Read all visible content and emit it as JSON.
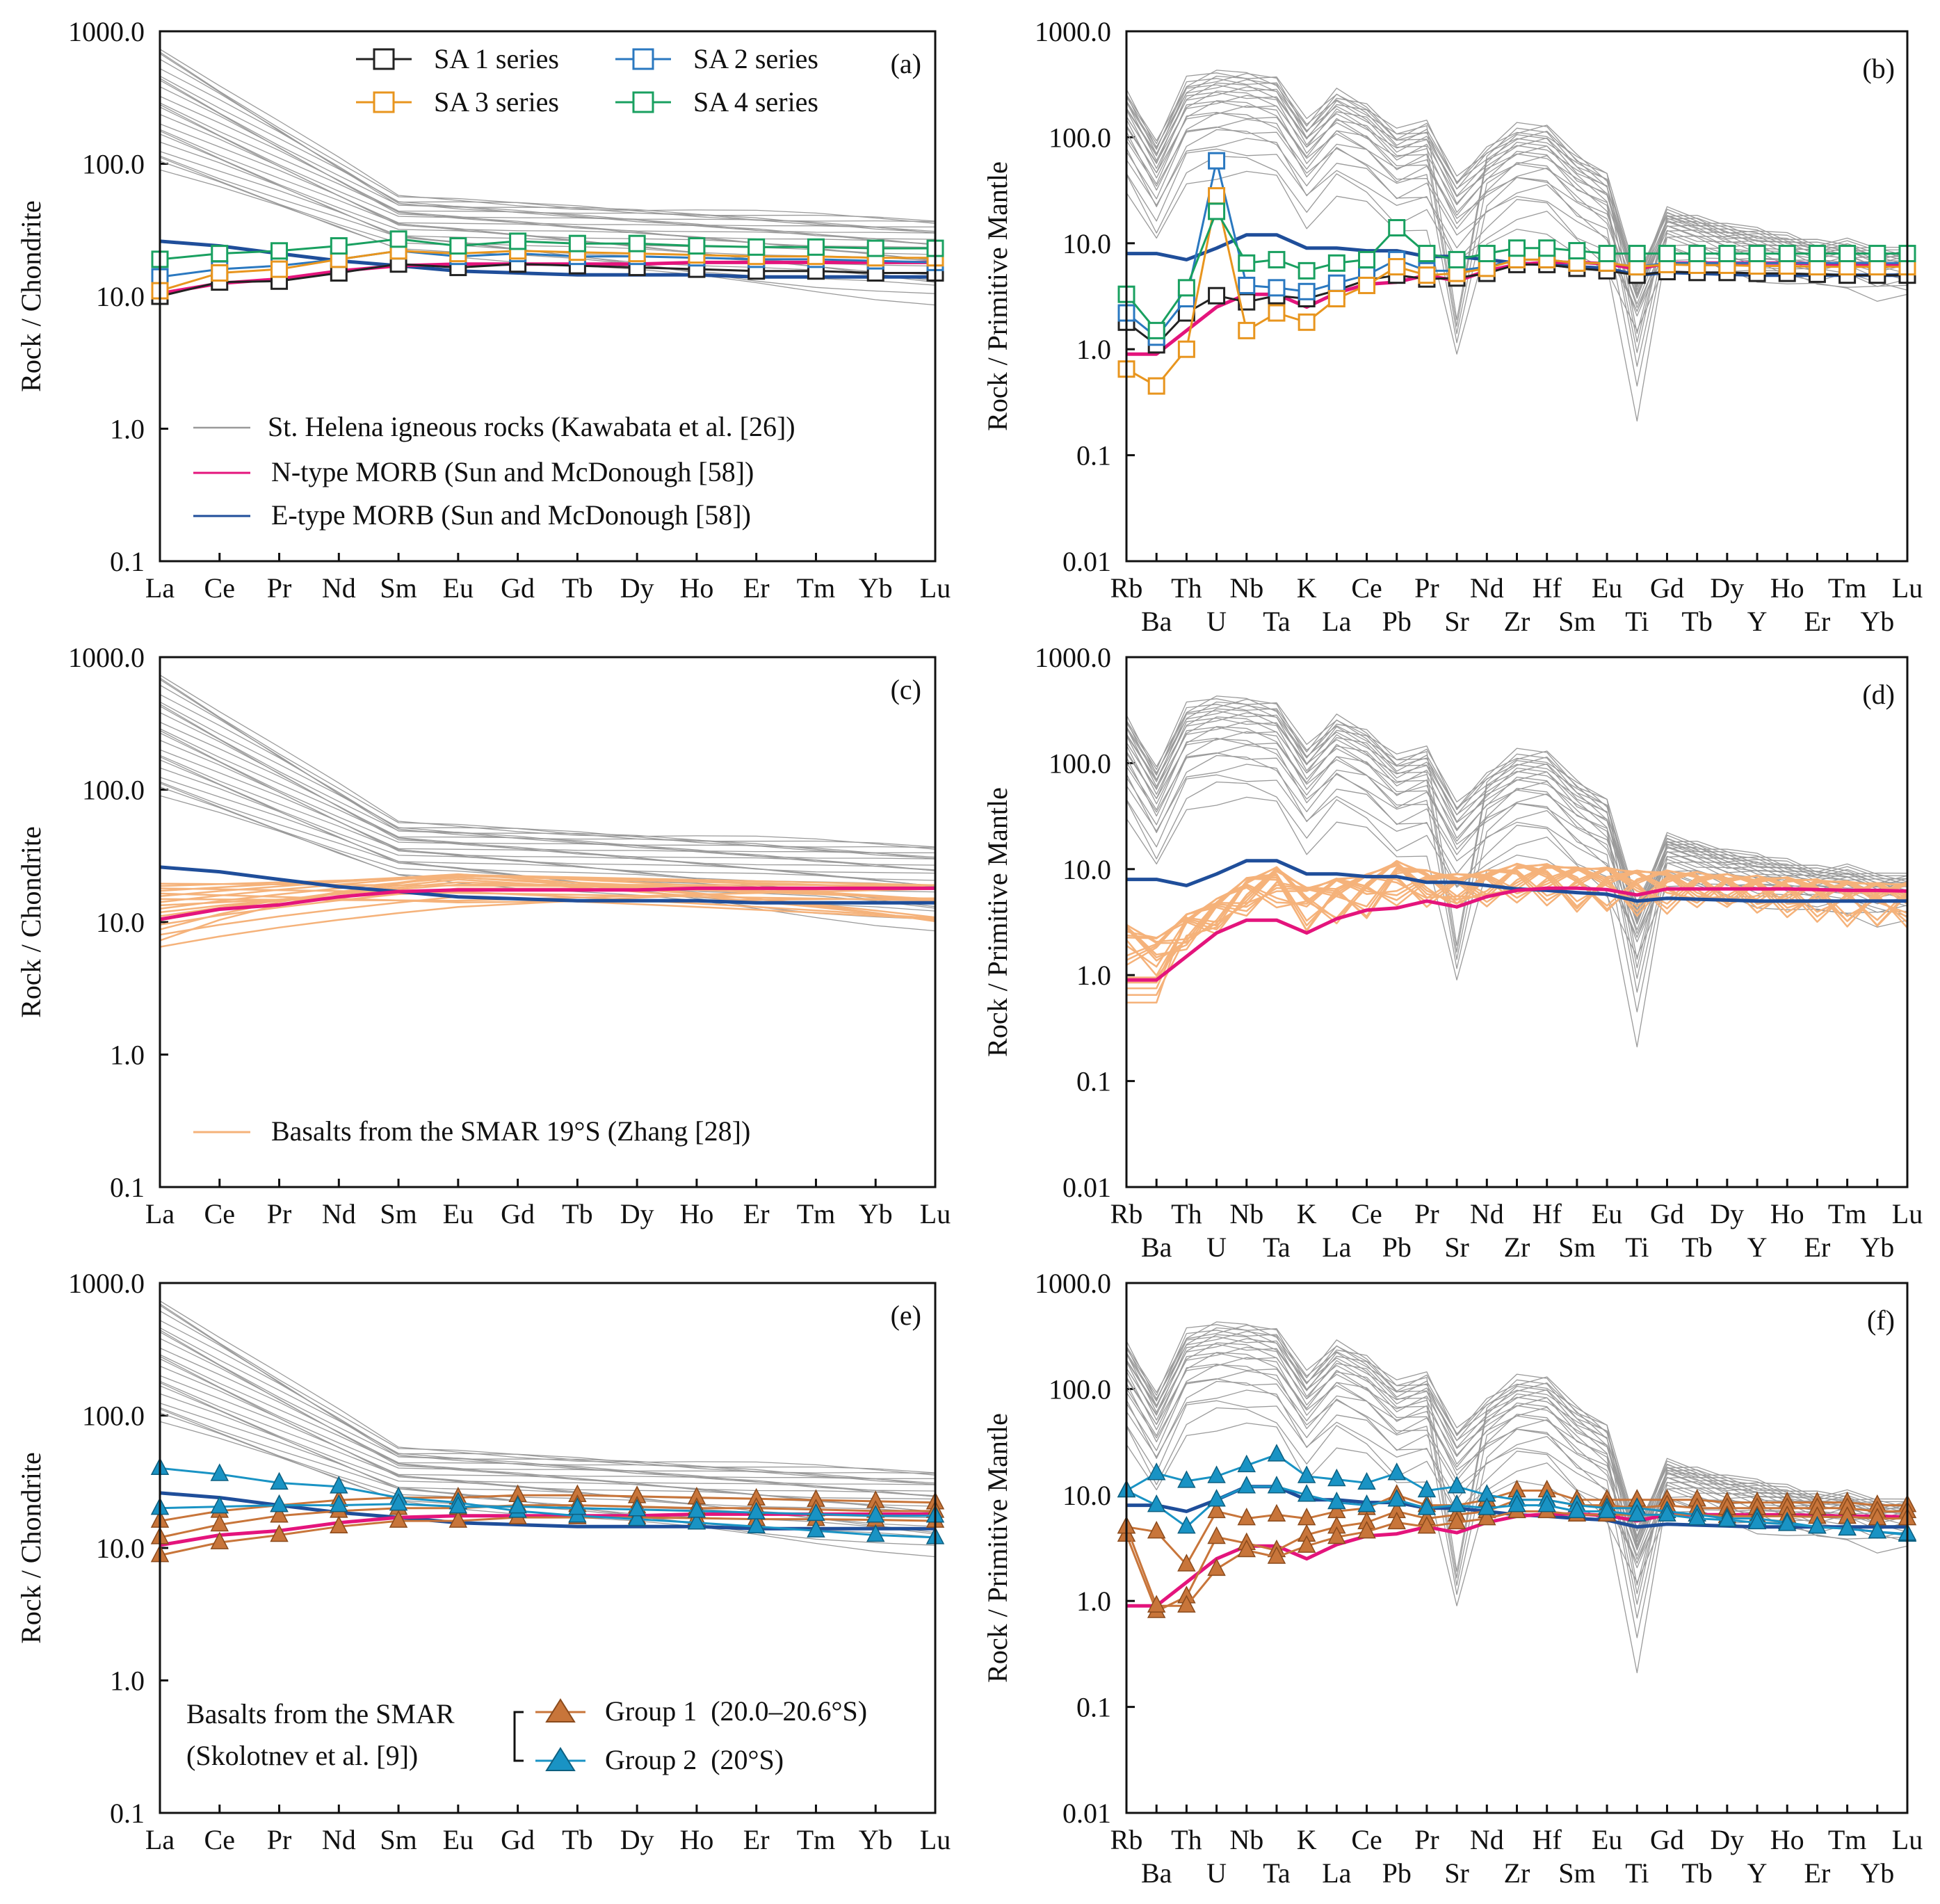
{
  "figure": {
    "title": "Chondrite-normalized REE and primitive-mantle-normalized trace element patterns"
  },
  "colors": {
    "helena": "#9a9a9a",
    "nmorb": "#e4147c",
    "emorb": "#1f4e9a",
    "sa1": "#222222",
    "sa2": "#2a78c0",
    "sa3": "#e8951e",
    "sa4": "#19a060",
    "smar": "#f5b27a",
    "group1": "#c8753a",
    "group2": "#1993c4"
  },
  "axes": {
    "ree_ylabel": "Rock / Chondrite",
    "ree_ticks": [
      "1000.0",
      "100.0",
      "10.0",
      "1.0",
      "0.1"
    ],
    "spider_ylabel": "Rock / Primitive Mantle",
    "spider_ticks": [
      "1000.0",
      "100.0",
      "10.0",
      "1.0",
      "0.1",
      "0.01"
    ]
  },
  "chart_data": [
    {
      "panel": "a",
      "label": "(a)",
      "type": "line",
      "ylabel": "Rock / Chondrite",
      "yscale": "log",
      "ylim": [
        0.1,
        1000
      ],
      "categories": [
        "La",
        "Ce",
        "Pr",
        "Nd",
        "Sm",
        "Eu",
        "Gd",
        "Tb",
        "Dy",
        "Ho",
        "Er",
        "Tm",
        "Yb",
        "Lu"
      ],
      "legend": {
        "series": [
          {
            "label": "SA 1 series",
            "color": "sa1",
            "marker": "square"
          },
          {
            "label": "SA 2 series",
            "color": "sa2",
            "marker": "square"
          },
          {
            "label": "SA 3 series",
            "color": "sa3",
            "marker": "square"
          },
          {
            "label": "SA 4 series",
            "color": "sa4",
            "marker": "square"
          }
        ],
        "references": [
          {
            "label": "St. Helena igneous rocks (Kawabata et al. [26])",
            "color": "helena"
          },
          {
            "label": "N-type MORB (Sun and McDonough [58])",
            "color": "nmorb"
          },
          {
            "label": "E-type MORB (Sun and McDonough [58])",
            "color": "emorb"
          }
        ]
      },
      "series": [
        {
          "name": "SA 1 series",
          "color": "sa1",
          "values": [
            10,
            12.8,
            13,
            15,
            17.5,
            16.5,
            17.5,
            17,
            16.5,
            16,
            15.5,
            15.5,
            15,
            15
          ]
        },
        {
          "name": "SA 2 series",
          "color": "sa2",
          "values": [
            14,
            16,
            17,
            19,
            22,
            20,
            21,
            20,
            20,
            19.5,
            19,
            19,
            18.5,
            18
          ]
        },
        {
          "name": "SA 3 series",
          "color": "sa3",
          "values": [
            11,
            15,
            16,
            19,
            22,
            21,
            22,
            21.5,
            21,
            20.5,
            20,
            20,
            19.5,
            19.5
          ]
        },
        {
          "name": "SA 4 series",
          "color": "sa4",
          "values": [
            19,
            21,
            22,
            24,
            27,
            24,
            26,
            25,
            25,
            24,
            23.5,
            23.5,
            23,
            23
          ]
        }
      ]
    },
    {
      "panel": "b",
      "label": "(b)",
      "type": "line",
      "ylabel": "Rock / Primitive Mantle",
      "yscale": "log",
      "ylim": [
        0.01,
        1000
      ],
      "categories": [
        "Rb",
        "Ba",
        "Th",
        "U",
        "Nb",
        "Ta",
        "K",
        "La",
        "Ce",
        "Pb",
        "Pr",
        "Sr",
        "Nd",
        "Zr",
        "Hf",
        "Sm",
        "Eu",
        "Ti",
        "Gd",
        "Tb",
        "Dy",
        "Y",
        "Ho",
        "Er",
        "Tm",
        "Yb",
        "Lu"
      ],
      "series": [
        {
          "name": "SA 1 series",
          "color": "sa1",
          "values": [
            1.8,
            1.1,
            2.2,
            3.2,
            2.8,
            3.2,
            3,
            3.6,
            4.5,
            5,
            4.6,
            4.7,
            5.2,
            6.3,
            6.3,
            5.8,
            5.5,
            5,
            5.4,
            5.3,
            5.3,
            5.2,
            5.2,
            5.1,
            5,
            5,
            5
          ]
        },
        {
          "name": "SA 2 series",
          "color": "sa2",
          "values": [
            2.2,
            1.3,
            3,
            60,
            4,
            3.8,
            3.5,
            4.2,
            5,
            7,
            5.5,
            5.5,
            6,
            7,
            7,
            6.5,
            6.5,
            6,
            6.5,
            6.5,
            6.5,
            6.5,
            6.5,
            6.5,
            6.5,
            6.5,
            6.5
          ]
        },
        {
          "name": "SA 3 series",
          "color": "sa3",
          "values": [
            0.65,
            0.45,
            1.0,
            28,
            1.5,
            2.2,
            1.8,
            3,
            4,
            6,
            5,
            5.2,
            5.8,
            7,
            7,
            6.5,
            6.5,
            6,
            6.3,
            6.2,
            6.2,
            6.1,
            6.1,
            6,
            6,
            6,
            6
          ]
        },
        {
          "name": "SA 4 series",
          "color": "sa4",
          "values": [
            3.3,
            1.5,
            3.8,
            20,
            6.5,
            7,
            5.5,
            6.5,
            7,
            14,
            8,
            7,
            8,
            9,
            9,
            8.5,
            8,
            8,
            8,
            8,
            8,
            8,
            8,
            8,
            8,
            8,
            8
          ]
        }
      ]
    },
    {
      "panel": "c",
      "label": "(c)",
      "type": "line",
      "ylabel": "Rock / Chondrite",
      "yscale": "log",
      "ylim": [
        0.1,
        1000
      ],
      "categories": [
        "La",
        "Ce",
        "Pr",
        "Nd",
        "Sm",
        "Eu",
        "Gd",
        "Tb",
        "Dy",
        "Ho",
        "Er",
        "Tm",
        "Yb",
        "Lu"
      ],
      "legend": {
        "references": [
          {
            "label": "Basalts from the SMAR 19°S (Zhang [28])",
            "color": "smar"
          }
        ]
      }
    },
    {
      "panel": "d",
      "label": "(d)",
      "type": "line",
      "ylabel": "Rock / Primitive Mantle",
      "yscale": "log",
      "ylim": [
        0.01,
        1000
      ],
      "categories": [
        "Rb",
        "Ba",
        "Th",
        "U",
        "Nb",
        "Ta",
        "K",
        "La",
        "Ce",
        "Pb",
        "Pr",
        "Sr",
        "Nd",
        "Zr",
        "Hf",
        "Sm",
        "Eu",
        "Ti",
        "Gd",
        "Tb",
        "Dy",
        "Y",
        "Ho",
        "Er",
        "Tm",
        "Yb",
        "Lu"
      ]
    },
    {
      "panel": "e",
      "label": "(e)",
      "type": "line",
      "ylabel": "Rock / Chondrite",
      "yscale": "log",
      "ylim": [
        0.1,
        1000
      ],
      "categories": [
        "La",
        "Ce",
        "Pr",
        "Nd",
        "Sm",
        "Eu",
        "Gd",
        "Tb",
        "Dy",
        "Ho",
        "Er",
        "Tm",
        "Yb",
        "Lu"
      ],
      "legend": {
        "header": [
          "Basalts from the SMAR",
          "(Skolotnev et al. [9])"
        ],
        "series": [
          {
            "label": "Group 1  (20.0–20.6°S)",
            "color": "group1",
            "marker": "triangle"
          },
          {
            "label": "Group 2  (20°S)",
            "color": "group2",
            "marker": "triangle"
          }
        ]
      },
      "series": [
        {
          "name": "Group 1 (a)",
          "color": "group1",
          "values": [
            16,
            19,
            21,
            23,
            24,
            24,
            25,
            25,
            24.5,
            24,
            23.5,
            23,
            22.5,
            22
          ]
        },
        {
          "name": "Group 1 (b)",
          "color": "group1",
          "values": [
            12,
            15,
            17.5,
            19,
            20,
            20,
            21,
            21,
            20.5,
            20,
            20,
            19.5,
            19,
            19
          ]
        },
        {
          "name": "Group 1 (c)",
          "color": "group1",
          "values": [
            8.8,
            11,
            12.5,
            14.5,
            16,
            16,
            17,
            17,
            17,
            16.8,
            16.5,
            16.5,
            16.3,
            16
          ]
        },
        {
          "name": "Group 2 (a)",
          "color": "group2",
          "values": [
            40,
            36,
            31,
            29,
            24,
            22,
            19,
            17.5,
            16.5,
            15.5,
            14.5,
            13.5,
            12.5,
            12
          ]
        },
        {
          "name": "Group 2 (b)",
          "color": "group2",
          "values": [
            20,
            20.5,
            21,
            21,
            21.5,
            20.5,
            20.5,
            20,
            19.5,
            19,
            18.5,
            18,
            17.5,
            17.5
          ]
        }
      ]
    },
    {
      "panel": "f",
      "label": "(f)",
      "type": "line",
      "ylabel": "Rock / Primitive Mantle",
      "yscale": "log",
      "ylim": [
        0.01,
        1000
      ],
      "categories": [
        "Rb",
        "Ba",
        "Th",
        "U",
        "Nb",
        "Ta",
        "K",
        "La",
        "Ce",
        "Pb",
        "Pr",
        "Sr",
        "Nd",
        "Zr",
        "Hf",
        "Sm",
        "Eu",
        "Ti",
        "Gd",
        "Tb",
        "Dy",
        "Y",
        "Ho",
        "Er",
        "Tm",
        "Yb",
        "Lu"
      ],
      "series": [
        {
          "name": "Group 1 (a)",
          "color": "group1",
          "values": [
            5,
            4.5,
            2.2,
            7,
            6,
            6.5,
            6,
            7,
            7.5,
            10,
            8,
            8,
            9,
            11,
            11,
            9,
            9,
            9,
            9,
            9,
            8.5,
            8.5,
            8.5,
            8.5,
            8.5,
            8,
            8
          ]
        },
        {
          "name": "Group 1 (b)",
          "color": "group1",
          "values": [
            4.2,
            0.8,
            1.1,
            4,
            3.5,
            3,
            4.2,
            5,
            5.5,
            7,
            6,
            6.5,
            7,
            9,
            9,
            8,
            8,
            7.5,
            8,
            7.5,
            7.5,
            7.5,
            7.5,
            7.5,
            7.5,
            7,
            7
          ]
        },
        {
          "name": "Group 1 (c)",
          "color": "group1",
          "values": [
            5,
            0.9,
            0.9,
            2,
            3,
            2.6,
            3.3,
            4,
            4.5,
            5.5,
            5,
            5.5,
            6,
            7,
            7,
            6.5,
            6.5,
            6.5,
            6.5,
            6.5,
            6.3,
            6.3,
            6.3,
            6.2,
            6.2,
            6,
            6
          ]
        },
        {
          "name": "Group 2 (a)",
          "color": "group2",
          "values": [
            11,
            16,
            13.5,
            15,
            19,
            24,
            15,
            14,
            13,
            16,
            11,
            12,
            10,
            9,
            9,
            8,
            7.5,
            7.5,
            7,
            6.5,
            6,
            6,
            5.5,
            5,
            4.8,
            4.5,
            4.2
          ]
        },
        {
          "name": "Group 2 (b)",
          "color": "group2",
          "values": [
            11,
            8,
            5,
            9,
            12,
            12,
            10,
            8.5,
            8,
            9,
            7.5,
            8,
            7.5,
            8,
            8,
            7,
            7,
            6.5,
            6.5,
            6,
            5.8,
            5.5,
            5.3,
            5,
            4.8,
            4.5,
            4.3
          ]
        }
      ]
    }
  ]
}
